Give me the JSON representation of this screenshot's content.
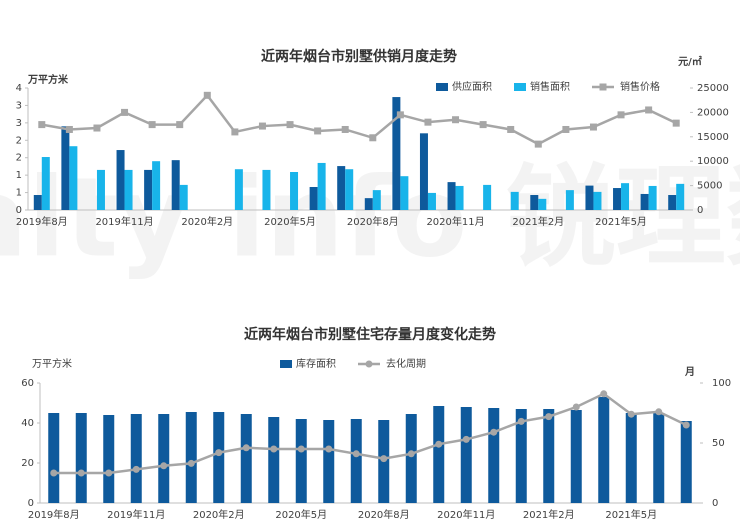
{
  "watermark": "Realty info 锐理数据",
  "chart_data": [
    {
      "type": "bar-line",
      "title": "近两年烟台市别墅供销月度走势",
      "y_label": "万平方米",
      "y2_label": "元/㎡",
      "categories": [
        "2019年8月",
        null,
        null,
        "2019年11月",
        null,
        null,
        "2020年2月",
        null,
        null,
        "2020年5月",
        null,
        null,
        "2020年8月",
        null,
        null,
        "2020年11月",
        null,
        null,
        "2021年2月",
        null,
        null,
        "2021年5月",
        null,
        null
      ],
      "series": [
        {
          "name": "供应面积",
          "kind": "bar",
          "color": "#0e5a9c",
          "values": [
            0.43,
            2.4,
            0,
            1.72,
            1.15,
            1.43,
            0,
            0,
            0,
            0,
            0.66,
            1.26,
            0.34,
            3.24,
            2.2,
            0.8,
            0,
            0,
            0.43,
            0,
            0.7,
            0.63,
            0.46,
            0.43
          ]
        },
        {
          "name": "销售面积",
          "kind": "bar",
          "color": "#18b4ea",
          "values": [
            1.52,
            1.83,
            1.15,
            1.15,
            1.4,
            0.72,
            0,
            1.17,
            1.15,
            1.09,
            1.35,
            1.17,
            0.57,
            0.97,
            0.49,
            0.69,
            0.72,
            0.52,
            0.32,
            0.57,
            0.52,
            0.77,
            0.69,
            0.75
          ]
        },
        {
          "name": "销售价格",
          "kind": "line",
          "marker": "square",
          "axis": "y2",
          "color": "#a6a6a6",
          "values": [
            17500,
            16500,
            16800,
            20000,
            17500,
            17500,
            23500,
            16000,
            17200,
            17500,
            16200,
            16500,
            14800,
            19500,
            18000,
            18500,
            17500,
            16500,
            13500,
            16500,
            17000,
            19500,
            20500,
            17800
          ]
        }
      ],
      "ylim": [
        0,
        3.5
      ],
      "yticks": [
        0,
        {
          "value": 0.5,
          "label": "1"
        },
        1,
        {
          "value": 1.5,
          "label": "2"
        },
        2,
        {
          "value": 2.5,
          "label": "3"
        },
        3,
        {
          "value": 3.5,
          "label": "4"
        }
      ],
      "y2lim": [
        0,
        25000
      ],
      "y2ticks": [
        0,
        5000,
        10000,
        15000,
        20000,
        25000
      ],
      "grid": false
    },
    {
      "type": "bar-line",
      "title": "近两年烟台市别墅住宅存量月度变化走势",
      "y_label": "万平方米",
      "y2_label": "月",
      "categories": [
        "2019年8月",
        null,
        null,
        "2019年11月",
        null,
        null,
        "2020年2月",
        null,
        null,
        "2020年5月",
        null,
        null,
        "2020年8月",
        null,
        null,
        "2020年11月",
        null,
        null,
        "2021年2月",
        null,
        null,
        "2021年5月",
        null,
        null
      ],
      "series": [
        {
          "name": "库存面积",
          "kind": "bar",
          "color": "#0e5a9c",
          "values": [
            45,
            45,
            44,
            44.5,
            44.5,
            45.5,
            45.5,
            44.5,
            43,
            42,
            41.5,
            42,
            41.5,
            44.5,
            48.5,
            48,
            47.5,
            47,
            47,
            46.5,
            53,
            45,
            45,
            41
          ]
        },
        {
          "name": "去化周期",
          "kind": "line",
          "marker": "circle",
          "axis": "y2",
          "color": "#a6a6a6",
          "values": [
            25,
            25,
            25,
            28,
            31,
            33,
            42,
            46,
            45,
            45,
            45,
            41,
            37,
            41,
            49,
            53,
            59,
            68,
            72,
            80,
            91,
            74,
            76,
            65
          ]
        }
      ],
      "ylim": [
        0,
        60
      ],
      "yticks": [
        0,
        20,
        40,
        60
      ],
      "y2lim": [
        0,
        100
      ],
      "y2ticks": [
        0,
        50,
        100
      ],
      "grid": false
    }
  ]
}
